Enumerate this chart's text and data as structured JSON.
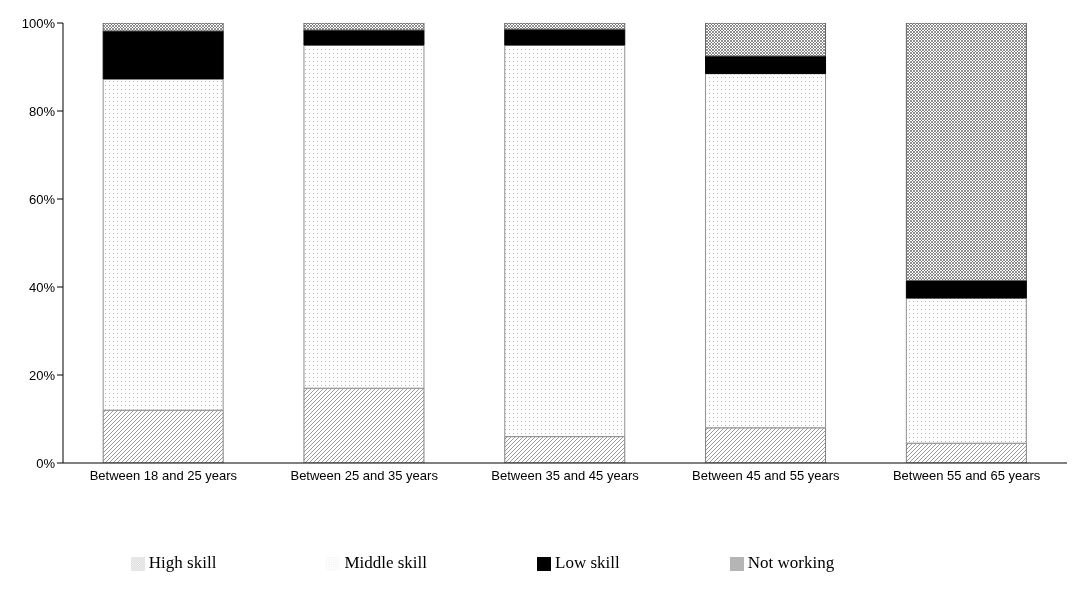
{
  "chart_data": {
    "type": "bar",
    "stacked": true,
    "categories": [
      "Between 18 and 25 years",
      "Between 25 and 35 years",
      "Between 35 and 45 years",
      "Between 45 and 55 years",
      "Between 55 and 65 years"
    ],
    "series": [
      {
        "name": "High skill",
        "color": "#808080",
        "values": [
          12,
          17,
          6,
          8,
          4.5
        ]
      },
      {
        "name": "Middle skill",
        "color": "#909090",
        "values": [
          75.3,
          78,
          89,
          80.5,
          33
        ]
      },
      {
        "name": "Low skill",
        "color": "#000000",
        "values": [
          10.9,
          3.4,
          3.6,
          4,
          4
        ]
      },
      {
        "name": "Not working",
        "color": "#606060",
        "values": [
          1.8,
          1.6,
          1.4,
          7.5,
          58.5
        ]
      }
    ],
    "ylim": [
      0,
      100
    ],
    "yticks": [
      {
        "value": 0,
        "label": "0%"
      },
      {
        "value": 20,
        "label": "20%"
      },
      {
        "value": 40,
        "label": "40%"
      },
      {
        "value": 60,
        "label": "60%"
      },
      {
        "value": 80,
        "label": "80%"
      },
      {
        "value": 100,
        "label": "100%"
      }
    ],
    "grid": false,
    "legend": "bottom"
  }
}
